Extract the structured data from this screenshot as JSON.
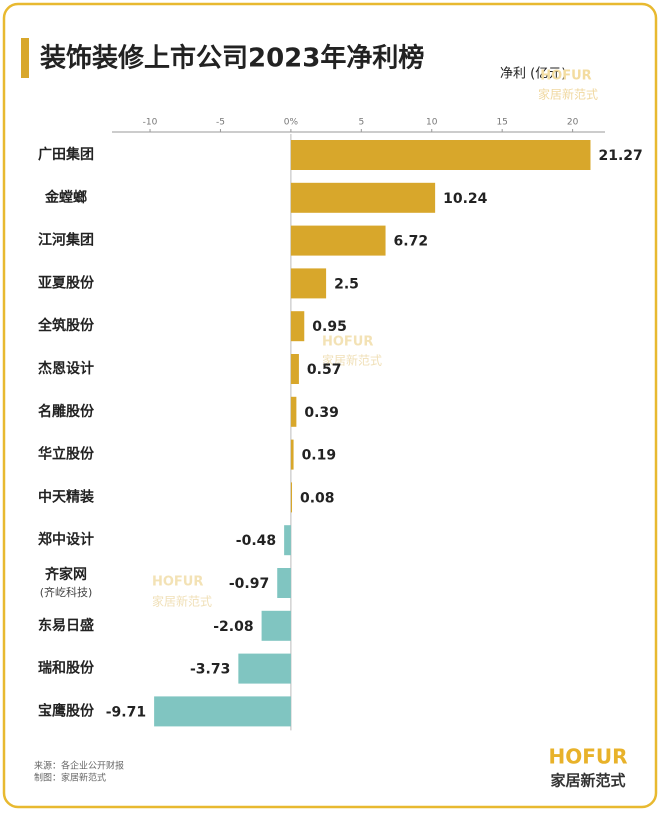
{
  "chart_data": {
    "type": "bar",
    "orientation": "horizontal",
    "title": "装饰装修上市公司2023年净利榜",
    "x_label": "净利 (亿元)",
    "categories": [
      "广田集团",
      "金螳螂",
      "江河集团",
      "亚夏股份",
      "全筑股份",
      "杰恩设计",
      "名雕股份",
      "华立股份",
      "中天精装",
      "郑中设计",
      "齐家网",
      "东易日盛",
      "瑞和股份",
      "宝鹰股份"
    ],
    "category_notes": [
      null,
      null,
      null,
      null,
      null,
      null,
      null,
      null,
      null,
      null,
      "(齐屹科技)",
      null,
      null,
      null
    ],
    "values": [
      21.27,
      10.24,
      6.72,
      2.5,
      0.95,
      0.57,
      0.39,
      0.19,
      0.08,
      -0.48,
      -0.97,
      -2.08,
      -3.73,
      -9.71
    ],
    "colors": {
      "positive": "#d8a72b",
      "negative": "#80c5c1"
    },
    "xlim": [
      -12.7,
      22.3
    ],
    "xticks": [
      -10,
      -5,
      {
        "value": 0,
        "label": "0%"
      },
      5,
      10,
      15,
      20
    ],
    "source": "来源：各企业公开财报",
    "credit": "制图：家居新范式",
    "brand": {
      "name": "HOFUR",
      "tagline": "家居新范式"
    }
  }
}
